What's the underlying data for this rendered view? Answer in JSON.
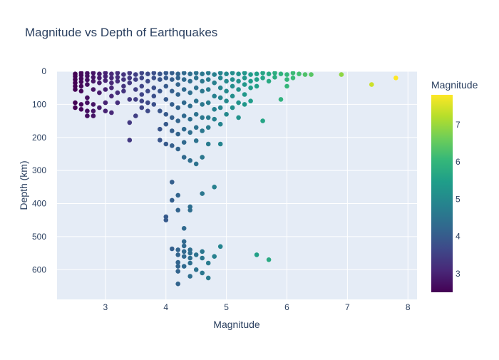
{
  "chart_data": {
    "type": "scatter",
    "title": "Magnitude vs Depth of Earthquakes",
    "xlabel": "Magnitude",
    "ylabel": "Depth (km)",
    "xlim": [
      2.2,
      8.15
    ],
    "ylim": [
      0,
      690
    ],
    "y_reversed": true,
    "grid": true,
    "x_ticks": [
      3,
      4,
      5,
      6,
      7,
      8
    ],
    "y_ticks": [
      0,
      100,
      200,
      300,
      400,
      500,
      600
    ],
    "colorbar": {
      "title": "Magnitude",
      "colorscale": "Viridis",
      "range": [
        2.5,
        7.8
      ],
      "ticks": [
        3,
        4,
        5,
        6,
        7
      ]
    },
    "points": [
      [
        2.5,
        8
      ],
      [
        2.5,
        15
      ],
      [
        2.5,
        25
      ],
      [
        2.5,
        35
      ],
      [
        2.5,
        45
      ],
      [
        2.5,
        55
      ],
      [
        2.5,
        95
      ],
      [
        2.5,
        110
      ],
      [
        2.6,
        5
      ],
      [
        2.6,
        12
      ],
      [
        2.6,
        22
      ],
      [
        2.6,
        32
      ],
      [
        2.6,
        45
      ],
      [
        2.6,
        60
      ],
      [
        2.6,
        100
      ],
      [
        2.6,
        115
      ],
      [
        2.7,
        6
      ],
      [
        2.7,
        14
      ],
      [
        2.7,
        26
      ],
      [
        2.7,
        40
      ],
      [
        2.7,
        80
      ],
      [
        2.7,
        95
      ],
      [
        2.7,
        120
      ],
      [
        2.7,
        135
      ],
      [
        2.8,
        5
      ],
      [
        2.8,
        18
      ],
      [
        2.8,
        30
      ],
      [
        2.8,
        55
      ],
      [
        2.8,
        100
      ],
      [
        2.8,
        120
      ],
      [
        2.8,
        135
      ],
      [
        2.9,
        8
      ],
      [
        2.9,
        20
      ],
      [
        2.9,
        35
      ],
      [
        2.9,
        65
      ],
      [
        2.9,
        110
      ],
      [
        3.0,
        5
      ],
      [
        3.0,
        15
      ],
      [
        3.0,
        28
      ],
      [
        3.0,
        55
      ],
      [
        3.0,
        95
      ],
      [
        3.0,
        120
      ],
      [
        3.1,
        8
      ],
      [
        3.1,
        20
      ],
      [
        3.1,
        35
      ],
      [
        3.1,
        50
      ],
      [
        3.1,
        75
      ],
      [
        3.1,
        125
      ],
      [
        3.2,
        5
      ],
      [
        3.2,
        18
      ],
      [
        3.2,
        30
      ],
      [
        3.2,
        65
      ],
      [
        3.2,
        95
      ],
      [
        3.3,
        10
      ],
      [
        3.3,
        25
      ],
      [
        3.3,
        45
      ],
      [
        3.3,
        60
      ],
      [
        3.4,
        5
      ],
      [
        3.4,
        20
      ],
      [
        3.4,
        35
      ],
      [
        3.4,
        85
      ],
      [
        3.4,
        155
      ],
      [
        3.4,
        208
      ],
      [
        3.5,
        10
      ],
      [
        3.5,
        25
      ],
      [
        3.5,
        55
      ],
      [
        3.5,
        85
      ],
      [
        3.5,
        135
      ],
      [
        3.6,
        5
      ],
      [
        3.6,
        20
      ],
      [
        3.6,
        45
      ],
      [
        3.6,
        70
      ],
      [
        3.6,
        90
      ],
      [
        3.6,
        110
      ],
      [
        3.7,
        8
      ],
      [
        3.7,
        30
      ],
      [
        3.7,
        60
      ],
      [
        3.7,
        95
      ],
      [
        3.7,
        120
      ],
      [
        3.8,
        5
      ],
      [
        3.8,
        20
      ],
      [
        3.8,
        50
      ],
      [
        3.8,
        75
      ],
      [
        3.8,
        100
      ],
      [
        3.9,
        8
      ],
      [
        3.9,
        25
      ],
      [
        3.9,
        60
      ],
      [
        3.9,
        120
      ],
      [
        3.9,
        175
      ],
      [
        3.9,
        208
      ],
      [
        4.0,
        5
      ],
      [
        4.0,
        20
      ],
      [
        4.0,
        45
      ],
      [
        4.0,
        85
      ],
      [
        4.0,
        130
      ],
      [
        4.0,
        160
      ],
      [
        4.0,
        220
      ],
      [
        4.0,
        440
      ],
      [
        4.0,
        450
      ],
      [
        4.1,
        5
      ],
      [
        4.1,
        25
      ],
      [
        4.1,
        60
      ],
      [
        4.1,
        100
      ],
      [
        4.1,
        140
      ],
      [
        4.1,
        180
      ],
      [
        4.1,
        225
      ],
      [
        4.1,
        335
      ],
      [
        4.1,
        390
      ],
      [
        4.1,
        537
      ],
      [
        4.2,
        8
      ],
      [
        4.2,
        20
      ],
      [
        4.2,
        40
      ],
      [
        4.2,
        70
      ],
      [
        4.2,
        110
      ],
      [
        4.2,
        150
      ],
      [
        4.2,
        190
      ],
      [
        4.2,
        235
      ],
      [
        4.2,
        375
      ],
      [
        4.2,
        420
      ],
      [
        4.2,
        540
      ],
      [
        4.2,
        555
      ],
      [
        4.2,
        578
      ],
      [
        4.2,
        590
      ],
      [
        4.2,
        605
      ],
      [
        4.2,
        643
      ],
      [
        4.3,
        5
      ],
      [
        4.3,
        25
      ],
      [
        4.3,
        55
      ],
      [
        4.3,
        95
      ],
      [
        4.3,
        135
      ],
      [
        4.3,
        175
      ],
      [
        4.3,
        215
      ],
      [
        4.3,
        260
      ],
      [
        4.3,
        475
      ],
      [
        4.3,
        515
      ],
      [
        4.3,
        528
      ],
      [
        4.3,
        545
      ],
      [
        4.3,
        560
      ],
      [
        4.3,
        590
      ],
      [
        4.4,
        8
      ],
      [
        4.4,
        30
      ],
      [
        4.4,
        65
      ],
      [
        4.4,
        105
      ],
      [
        4.4,
        145
      ],
      [
        4.4,
        185
      ],
      [
        4.4,
        270
      ],
      [
        4.4,
        410
      ],
      [
        4.4,
        420
      ],
      [
        4.4,
        540
      ],
      [
        4.4,
        550
      ],
      [
        4.4,
        565
      ],
      [
        4.4,
        580
      ],
      [
        4.4,
        620
      ],
      [
        4.5,
        5
      ],
      [
        4.5,
        20
      ],
      [
        4.5,
        50
      ],
      [
        4.5,
        90
      ],
      [
        4.5,
        130
      ],
      [
        4.5,
        170
      ],
      [
        4.5,
        210
      ],
      [
        4.5,
        280
      ],
      [
        4.5,
        555
      ],
      [
        4.5,
        600
      ],
      [
        4.6,
        8
      ],
      [
        4.6,
        30
      ],
      [
        4.6,
        60
      ],
      [
        4.6,
        100
      ],
      [
        4.6,
        140
      ],
      [
        4.6,
        180
      ],
      [
        4.6,
        260
      ],
      [
        4.6,
        370
      ],
      [
        4.6,
        545
      ],
      [
        4.6,
        565
      ],
      [
        4.6,
        610
      ],
      [
        4.7,
        5
      ],
      [
        4.7,
        25
      ],
      [
        4.7,
        55
      ],
      [
        4.7,
        95
      ],
      [
        4.7,
        140
      ],
      [
        4.7,
        170
      ],
      [
        4.7,
        220
      ],
      [
        4.7,
        580
      ],
      [
        4.7,
        625
      ],
      [
        4.8,
        10
      ],
      [
        4.8,
        35
      ],
      [
        4.8,
        75
      ],
      [
        4.8,
        115
      ],
      [
        4.8,
        145
      ],
      [
        4.8,
        350
      ],
      [
        4.8,
        560
      ],
      [
        4.9,
        5
      ],
      [
        4.9,
        20
      ],
      [
        4.9,
        50
      ],
      [
        4.9,
        80
      ],
      [
        4.9,
        110
      ],
      [
        4.9,
        160
      ],
      [
        4.9,
        220
      ],
      [
        4.9,
        530
      ],
      [
        5.0,
        8
      ],
      [
        5.0,
        30
      ],
      [
        5.0,
        60
      ],
      [
        5.0,
        90
      ],
      [
        5.0,
        130
      ],
      [
        5.1,
        5
      ],
      [
        5.1,
        25
      ],
      [
        5.1,
        45
      ],
      [
        5.1,
        75
      ],
      [
        5.1,
        110
      ],
      [
        5.2,
        8
      ],
      [
        5.2,
        30
      ],
      [
        5.2,
        55
      ],
      [
        5.2,
        95
      ],
      [
        5.2,
        140
      ],
      [
        5.3,
        5
      ],
      [
        5.3,
        20
      ],
      [
        5.3,
        40
      ],
      [
        5.3,
        70
      ],
      [
        5.3,
        100
      ],
      [
        5.4,
        10
      ],
      [
        5.4,
        30
      ],
      [
        5.4,
        50
      ],
      [
        5.4,
        90
      ],
      [
        5.5,
        8
      ],
      [
        5.5,
        25
      ],
      [
        5.5,
        45
      ],
      [
        5.5,
        555
      ],
      [
        5.6,
        5
      ],
      [
        5.6,
        20
      ],
      [
        5.6,
        150
      ],
      [
        5.7,
        8
      ],
      [
        5.7,
        30
      ],
      [
        5.7,
        570
      ],
      [
        5.8,
        5
      ],
      [
        5.8,
        18
      ],
      [
        5.9,
        8
      ],
      [
        5.9,
        85
      ],
      [
        6.0,
        10
      ],
      [
        6.0,
        25
      ],
      [
        6.0,
        45
      ],
      [
        6.1,
        5
      ],
      [
        6.1,
        20
      ],
      [
        6.2,
        8
      ],
      [
        6.3,
        10
      ],
      [
        6.4,
        10
      ],
      [
        6.9,
        10
      ],
      [
        7.4,
        40
      ],
      [
        7.8,
        20
      ]
    ]
  }
}
